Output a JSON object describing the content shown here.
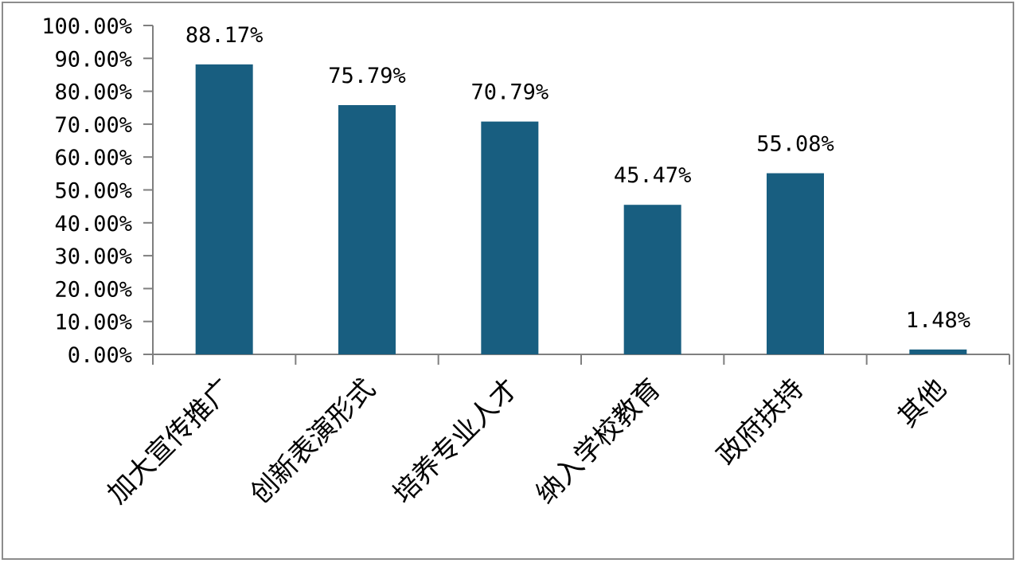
{
  "chart_data": {
    "type": "bar",
    "categories": [
      "加大宣传推广",
      "创新表演形式",
      "培养专业人才",
      "纳入学校教育",
      "政府扶持",
      "其他"
    ],
    "values": [
      88.17,
      75.79,
      70.79,
      45.47,
      55.08,
      1.48
    ],
    "value_labels": [
      "88.17%",
      "75.79%",
      "70.79%",
      "45.47%",
      "55.08%",
      "1.48%"
    ],
    "ylim": [
      0,
      100
    ],
    "yticks": [
      "0.00%",
      "10.00%",
      "20.00%",
      "30.00%",
      "40.00%",
      "50.00%",
      "60.00%",
      "70.00%",
      "80.00%",
      "90.00%",
      "100.00%"
    ],
    "title": "",
    "xlabel": "",
    "ylabel": "",
    "grid": false,
    "colors": {
      "bar": "#185E80",
      "axis": "#7f7f7f",
      "frame": "#8c8c8c"
    }
  }
}
